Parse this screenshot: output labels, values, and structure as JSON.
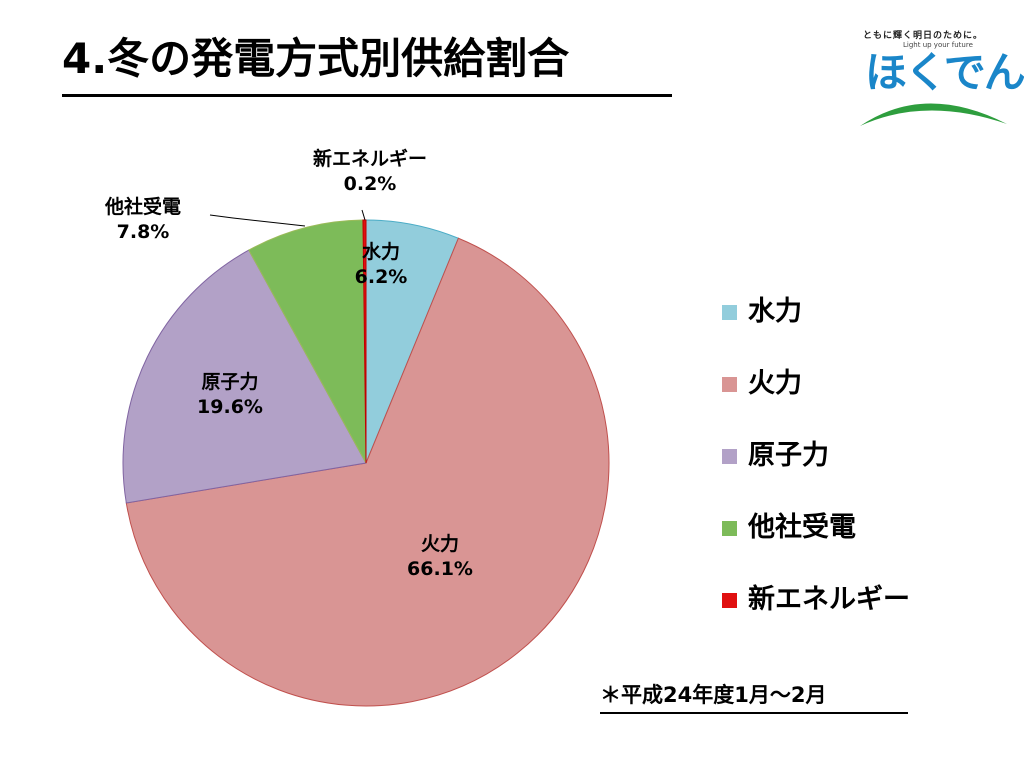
{
  "title": "4.冬の発電方式別供給割合",
  "logo": {
    "tagline_jp": "ともに輝く明日のために。",
    "tagline_en": "Light up your future",
    "brand": "ほくでん"
  },
  "footnote": "＊平成24年度1月～2月",
  "chart_data": {
    "type": "pie",
    "title": "",
    "slices": [
      {
        "label": "水力",
        "value": 6.2,
        "display": "6.2%",
        "color": "#92cddc"
      },
      {
        "label": "火力",
        "value": 66.1,
        "display": "66.1%",
        "color": "#d99594"
      },
      {
        "label": "原子力",
        "value": 19.6,
        "display": "19.6%",
        "color": "#b2a1c7"
      },
      {
        "label": "他社受電",
        "value": 7.8,
        "display": "7.8%",
        "color": "#7dbb59"
      },
      {
        "label": "新エネルギー",
        "value": 0.2,
        "display": "0.2%",
        "color": "#e01010"
      }
    ],
    "start": "12 o'clock",
    "direction": "clockwise",
    "legend_position": "right"
  }
}
